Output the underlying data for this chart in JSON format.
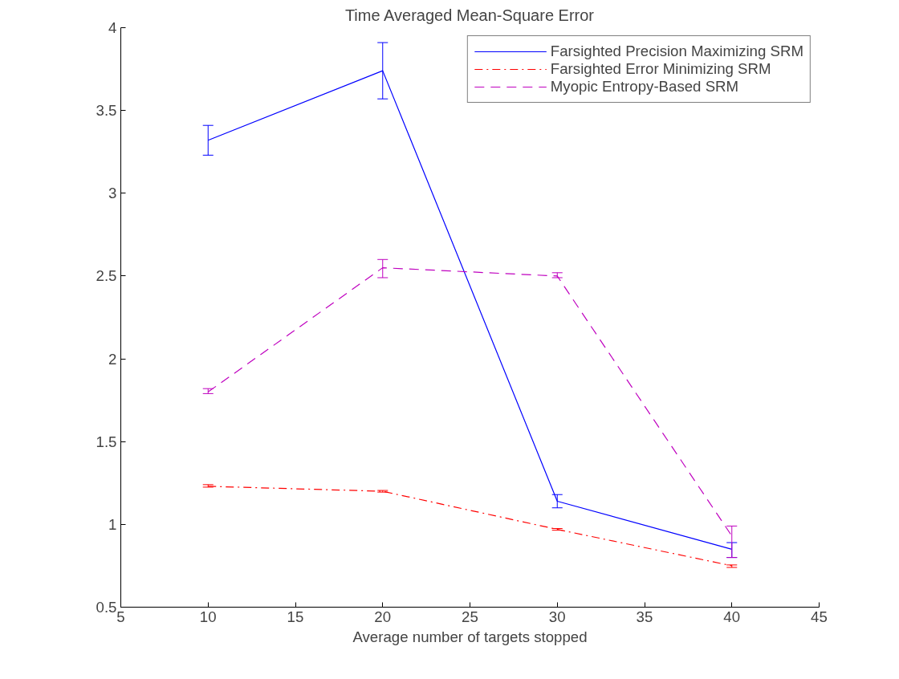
{
  "chart_data": {
    "type": "line",
    "title": "Time Averaged Mean-Square Error",
    "xlabel": "Average number of targets stopped",
    "x": [
      10,
      20,
      30,
      40
    ],
    "xlim": [
      5,
      45
    ],
    "xticks": [
      5,
      10,
      15,
      20,
      25,
      30,
      35,
      40,
      45
    ],
    "ylim": [
      0.5,
      4
    ],
    "yticks": [
      0.5,
      1,
      1.5,
      2,
      2.5,
      3,
      3.5,
      4
    ],
    "grid": false,
    "legend": "top right",
    "series": [
      {
        "name": "Farsighted Precision Maximizing SRM",
        "color": "#0000ff",
        "line_style": "solid",
        "values": [
          3.32,
          3.74,
          1.14,
          0.85
        ],
        "errors": [
          [
            3.23,
            3.41
          ],
          [
            3.57,
            3.91
          ],
          [
            1.1,
            1.18
          ],
          [
            0.8,
            0.89
          ]
        ]
      },
      {
        "name": "Farsighted Error Minimizing SRM",
        "color": "#ff0000",
        "line_style": "dashdot",
        "values": [
          1.23,
          1.2,
          0.97,
          0.75
        ],
        "errors": [
          [
            1.225,
            1.24
          ],
          [
            1.195,
            1.205
          ],
          [
            0.965,
            0.975
          ],
          [
            0.74,
            0.755
          ]
        ]
      },
      {
        "name": "Myopic Entropy-Based SRM",
        "color": "#bf00bf",
        "line_style": "dashed",
        "values": [
          1.8,
          2.55,
          2.5,
          0.93
        ],
        "errors": [
          [
            1.79,
            1.82
          ],
          [
            2.49,
            2.6
          ],
          [
            2.49,
            2.52
          ],
          [
            0.8,
            0.99
          ]
        ]
      }
    ]
  }
}
